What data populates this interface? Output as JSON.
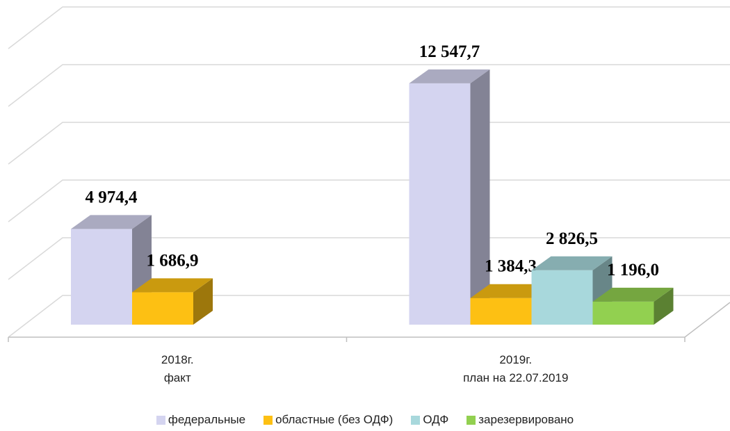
{
  "chart_data": {
    "type": "bar3d",
    "categories": [
      "2018г.\nфакт",
      "2019г.\nплан на 22.07.2019"
    ],
    "series": [
      {
        "name": "федеральные",
        "color": "#d4d4f0",
        "values": [
          4974.4,
          12547.7
        ],
        "value_labels": [
          "4 974,4",
          "12 547,7"
        ]
      },
      {
        "name": "областные (без ОДФ)",
        "color": "#fdc013",
        "values": [
          1686.9,
          1384.3
        ],
        "value_labels": [
          "1 686,9",
          "1 384,3"
        ]
      },
      {
        "name": "ОДФ",
        "color": "#a8d8dc",
        "values": [
          null,
          2826.5
        ],
        "value_labels": [
          null,
          "2 826,5"
        ]
      },
      {
        "name": "зарезервировано",
        "color": "#92d050",
        "values": [
          null,
          1196.0
        ],
        "value_labels": [
          null,
          "1 196,0"
        ]
      }
    ],
    "ylim": [
      0,
      15000
    ],
    "yticks": [
      0,
      3000,
      6000,
      9000,
      12000,
      15000
    ],
    "grid": true,
    "legend": "bottom"
  }
}
